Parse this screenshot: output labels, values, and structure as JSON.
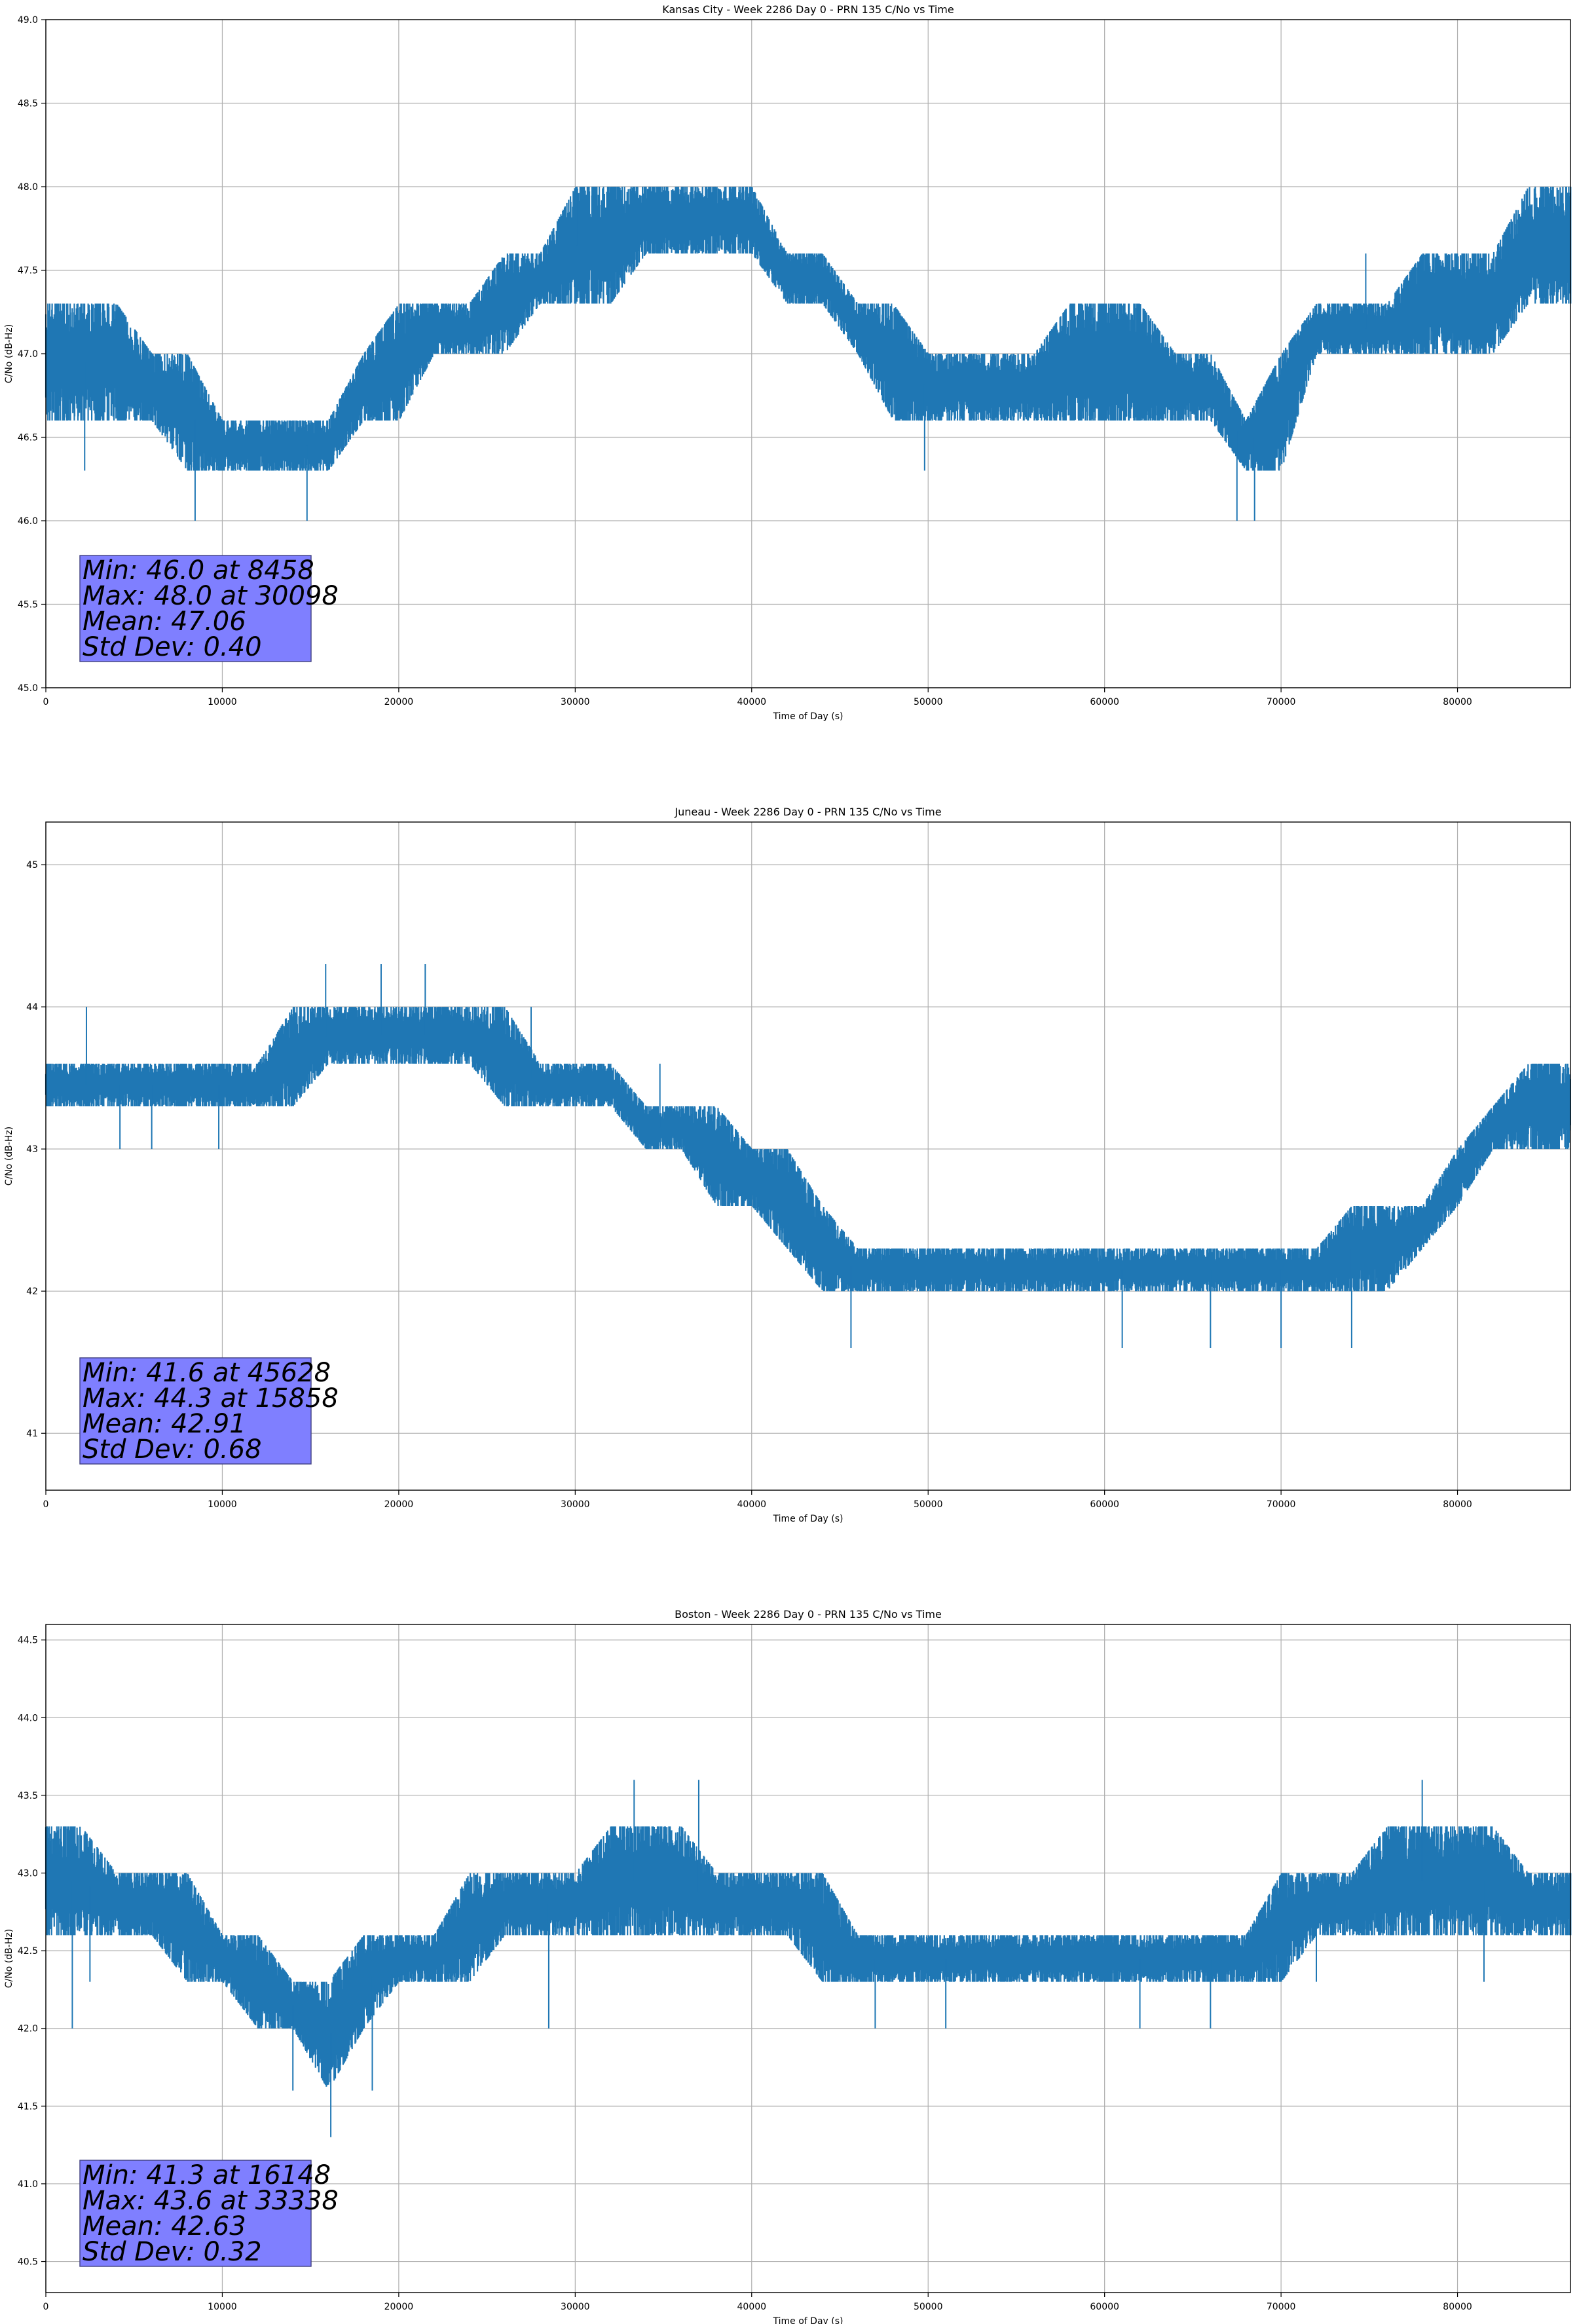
{
  "chart_data": [
    {
      "type": "line",
      "title": "Kansas City - Week 2286 Day 0 - PRN 135 C/No vs Time",
      "xlabel": "Time of Day (s)",
      "ylabel": "C/No (dB-Hz)",
      "xlim": [
        0,
        86400
      ],
      "ylim": [
        45.0,
        49.0
      ],
      "xticks": [
        0,
        10000,
        20000,
        30000,
        40000,
        50000,
        60000,
        70000,
        80000
      ],
      "yticks": [
        45.0,
        45.5,
        46.0,
        46.5,
        47.0,
        47.5,
        48.0,
        48.5,
        49.0
      ],
      "ytick_decimals": 1,
      "grid": true,
      "color": "#1f77b4",
      "series": [
        {
          "x": [
            0,
            2000,
            4000,
            6000,
            8000,
            10000,
            12000,
            14000,
            16000,
            18000,
            20000,
            22000,
            24000,
            26000,
            28000,
            30000,
            32000,
            34000,
            36000,
            38000,
            40000,
            42000,
            44000,
            46000,
            48000,
            50000,
            52000,
            54000,
            56000,
            58000,
            60000,
            62000,
            64000,
            66000,
            68000,
            70000,
            72000,
            74000,
            76000,
            78000,
            80000,
            82000,
            84000,
            86400
          ],
          "low": [
            46.6,
            46.6,
            46.6,
            46.6,
            46.3,
            46.3,
            46.3,
            46.3,
            46.3,
            46.6,
            46.6,
            47.0,
            47.0,
            47.0,
            47.3,
            47.3,
            47.3,
            47.6,
            47.6,
            47.6,
            47.6,
            47.3,
            47.3,
            47.0,
            46.6,
            46.6,
            46.6,
            46.6,
            46.6,
            46.6,
            46.6,
            46.6,
            46.6,
            46.6,
            46.3,
            46.3,
            47.0,
            47.0,
            47.0,
            47.0,
            47.0,
            47.0,
            47.3,
            47.3
          ],
          "high": [
            47.3,
            47.3,
            47.3,
            47.0,
            47.0,
            46.6,
            46.6,
            46.6,
            46.6,
            47.0,
            47.3,
            47.3,
            47.3,
            47.6,
            47.6,
            48.0,
            48.0,
            48.0,
            48.0,
            48.0,
            48.0,
            47.6,
            47.6,
            47.3,
            47.3,
            47.0,
            47.0,
            47.0,
            47.0,
            47.3,
            47.3,
            47.3,
            47.0,
            47.0,
            46.6,
            47.0,
            47.3,
            47.3,
            47.3,
            47.6,
            47.6,
            47.6,
            48.0,
            48.0
          ],
          "outliers": [
            [
              2200,
              46.3
            ],
            [
              8458,
              46.0
            ],
            [
              14800,
              46.0
            ],
            [
              30098,
              48.0
            ],
            [
              49800,
              46.3
            ],
            [
              67500,
              46.0
            ],
            [
              68500,
              46.0
            ],
            [
              74800,
              47.6
            ]
          ]
        }
      ],
      "annotation": [
        "Min: 46.0 at 8458",
        "Max: 48.0 at 30098",
        "Mean: 47.06",
        "Std Dev: 0.40"
      ]
    },
    {
      "type": "line",
      "title": "Juneau - Week 2286 Day 0 - PRN 135 C/No vs Time",
      "xlabel": "Time of Day (s)",
      "ylabel": "C/No (dB-Hz)",
      "xlim": [
        0,
        86400
      ],
      "ylim": [
        40.6,
        45.3
      ],
      "xticks": [
        0,
        10000,
        20000,
        30000,
        40000,
        50000,
        60000,
        70000,
        80000
      ],
      "yticks": [
        41,
        42,
        43,
        44,
        45
      ],
      "ytick_decimals": 0,
      "grid": true,
      "color": "#1f77b4",
      "series": [
        {
          "x": [
            0,
            2000,
            4000,
            6000,
            8000,
            10000,
            12000,
            14000,
            16000,
            18000,
            20000,
            22000,
            24000,
            26000,
            28000,
            30000,
            32000,
            34000,
            36000,
            38000,
            40000,
            42000,
            44000,
            46000,
            48000,
            50000,
            52000,
            54000,
            56000,
            58000,
            60000,
            62000,
            64000,
            66000,
            68000,
            70000,
            72000,
            74000,
            76000,
            78000,
            80000,
            82000,
            84000,
            86400
          ],
          "low": [
            43.3,
            43.3,
            43.3,
            43.3,
            43.3,
            43.3,
            43.3,
            43.3,
            43.6,
            43.6,
            43.6,
            43.6,
            43.6,
            43.3,
            43.3,
            43.3,
            43.3,
            43.0,
            43.0,
            42.6,
            42.6,
            42.3,
            42.0,
            42.0,
            42.0,
            42.0,
            42.0,
            42.0,
            42.0,
            42.0,
            42.0,
            42.0,
            42.0,
            42.0,
            42.0,
            42.0,
            42.0,
            42.0,
            42.0,
            42.3,
            42.6,
            43.0,
            43.0,
            43.0
          ],
          "high": [
            43.6,
            43.6,
            43.6,
            43.6,
            43.6,
            43.6,
            43.6,
            44.0,
            44.0,
            44.0,
            44.0,
            44.0,
            44.0,
            44.0,
            43.6,
            43.6,
            43.6,
            43.3,
            43.3,
            43.3,
            43.0,
            43.0,
            42.6,
            42.3,
            42.3,
            42.3,
            42.3,
            42.3,
            42.3,
            42.3,
            42.3,
            42.3,
            42.3,
            42.3,
            42.3,
            42.3,
            42.3,
            42.6,
            42.6,
            42.6,
            43.0,
            43.3,
            43.6,
            43.6
          ],
          "outliers": [
            [
              2300,
              44.0
            ],
            [
              4200,
              43.0
            ],
            [
              6000,
              43.0
            ],
            [
              9800,
              43.0
            ],
            [
              15858,
              44.3
            ],
            [
              19000,
              44.3
            ],
            [
              21500,
              44.3
            ],
            [
              27500,
              44.0
            ],
            [
              34800,
              43.6
            ],
            [
              45628,
              41.6
            ],
            [
              61000,
              41.6
            ],
            [
              66000,
              41.6
            ],
            [
              70000,
              41.6
            ],
            [
              74000,
              41.6
            ]
          ]
        }
      ],
      "annotation": [
        "Min: 41.6 at 45628",
        "Max: 44.3 at 15858",
        "Mean: 42.91",
        "Std Dev: 0.68"
      ]
    },
    {
      "type": "line",
      "title": "Boston - Week 2286 Day 0 - PRN 135 C/No vs Time",
      "xlabel": "Time of Day (s)",
      "ylabel": "C/No (dB-Hz)",
      "xlim": [
        0,
        86400
      ],
      "ylim": [
        40.3,
        44.6
      ],
      "xticks": [
        0,
        10000,
        20000,
        30000,
        40000,
        50000,
        60000,
        70000,
        80000
      ],
      "yticks": [
        40.5,
        41.0,
        41.5,
        42.0,
        42.5,
        43.0,
        43.5,
        44.0,
        44.5
      ],
      "ytick_decimals": 1,
      "grid": true,
      "color": "#1f77b4",
      "series": [
        {
          "x": [
            0,
            2000,
            4000,
            6000,
            8000,
            10000,
            12000,
            14000,
            16000,
            18000,
            20000,
            22000,
            24000,
            26000,
            28000,
            30000,
            32000,
            34000,
            36000,
            38000,
            40000,
            42000,
            44000,
            46000,
            48000,
            50000,
            52000,
            54000,
            56000,
            58000,
            60000,
            62000,
            64000,
            66000,
            68000,
            70000,
            72000,
            74000,
            76000,
            78000,
            80000,
            82000,
            84000,
            86400
          ],
          "low": [
            42.6,
            42.6,
            42.6,
            42.6,
            42.3,
            42.3,
            42.0,
            42.0,
            41.6,
            42.0,
            42.3,
            42.3,
            42.3,
            42.6,
            42.6,
            42.6,
            42.6,
            42.6,
            42.6,
            42.6,
            42.6,
            42.6,
            42.3,
            42.3,
            42.3,
            42.3,
            42.3,
            42.3,
            42.3,
            42.3,
            42.3,
            42.3,
            42.3,
            42.3,
            42.3,
            42.3,
            42.6,
            42.6,
            42.6,
            42.6,
            42.6,
            42.6,
            42.6,
            42.6
          ],
          "high": [
            43.3,
            43.3,
            43.0,
            43.0,
            43.0,
            42.6,
            42.6,
            42.3,
            42.3,
            42.6,
            42.6,
            42.6,
            43.0,
            43.0,
            43.0,
            43.0,
            43.3,
            43.3,
            43.3,
            43.0,
            43.0,
            43.0,
            43.0,
            42.6,
            42.6,
            42.6,
            42.6,
            42.6,
            42.6,
            42.6,
            42.6,
            42.6,
            42.6,
            42.6,
            42.6,
            43.0,
            43.0,
            43.0,
            43.3,
            43.3,
            43.3,
            43.3,
            43.0,
            43.0
          ],
          "outliers": [
            [
              1500,
              42.0
            ],
            [
              2500,
              42.3
            ],
            [
              16148,
              41.3
            ],
            [
              14000,
              41.6
            ],
            [
              18500,
              41.6
            ],
            [
              28500,
              42.0
            ],
            [
              33338,
              43.6
            ],
            [
              37000,
              43.6
            ],
            [
              47000,
              42.0
            ],
            [
              51000,
              42.0
            ],
            [
              62000,
              42.0
            ],
            [
              66000,
              42.0
            ],
            [
              72000,
              42.3
            ],
            [
              78000,
              43.6
            ],
            [
              81500,
              42.3
            ]
          ]
        }
      ],
      "annotation": [
        "Min: 41.3 at 16148",
        "Max: 43.6 at 33338",
        "Mean: 42.63",
        "Std Dev: 0.32"
      ]
    }
  ]
}
